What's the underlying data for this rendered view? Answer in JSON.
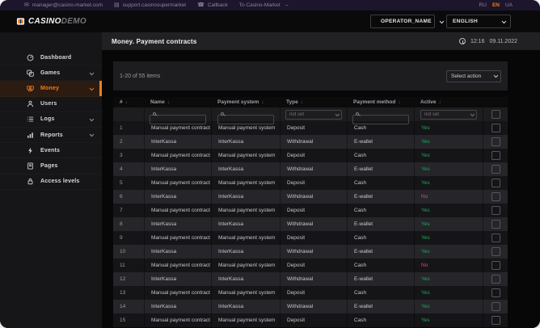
{
  "topbar": {
    "links": [
      {
        "id": "email",
        "icon": "envelope-icon",
        "label": "manager@casino-market.com"
      },
      {
        "id": "support",
        "icon": "chat-icon",
        "label": "support.casinosupermarket"
      },
      {
        "id": "callback",
        "icon": "phone-icon",
        "label": "Callback"
      },
      {
        "id": "to-casino-market",
        "icon": "arrow-right-icon",
        "label": "To Casino-Market",
        "icon_after": true
      }
    ],
    "languages": [
      {
        "code": "RU",
        "active": false
      },
      {
        "code": "EN",
        "active": true
      },
      {
        "code": "UA",
        "active": false
      }
    ]
  },
  "appbar": {
    "logo_primary": "CASINO",
    "logo_secondary": "DEMO",
    "operator_label": "OPERATOR_NAME",
    "language_label": "ENGLISH"
  },
  "sidebar": {
    "items": [
      {
        "id": "dashboard",
        "label": "Dashboard",
        "icon": "dashboard-icon",
        "expandable": false,
        "active": false
      },
      {
        "id": "games",
        "label": "Games",
        "icon": "games-icon",
        "expandable": true,
        "active": false
      },
      {
        "id": "money",
        "label": "Money",
        "icon": "money-icon",
        "expandable": true,
        "active": true
      },
      {
        "id": "users",
        "label": "Users",
        "icon": "users-icon",
        "expandable": false,
        "active": false
      },
      {
        "id": "logs",
        "label": "Logs",
        "icon": "logs-icon",
        "expandable": true,
        "active": false
      },
      {
        "id": "reports",
        "label": "Reports",
        "icon": "reports-icon",
        "expandable": true,
        "active": false
      },
      {
        "id": "events",
        "label": "Events",
        "icon": "events-icon",
        "expandable": false,
        "active": false
      },
      {
        "id": "pages",
        "label": "Pages",
        "icon": "pages-icon",
        "expandable": false,
        "active": false
      },
      {
        "id": "access-levels",
        "label": "Access levels",
        "icon": "lock-icon",
        "expandable": false,
        "active": false
      }
    ]
  },
  "page_header": {
    "title": "Money. Payment contracts",
    "time": "12:16",
    "date": "09.11.2022"
  },
  "toolbar": {
    "items_count": "1-20 of 55 items",
    "action_label": "Select action"
  },
  "table": {
    "columns": [
      {
        "key": "num",
        "label": "#",
        "sortable": true
      },
      {
        "key": "name",
        "label": "Name",
        "sortable": true
      },
      {
        "key": "payment_system",
        "label": "Payment system",
        "sortable": true
      },
      {
        "key": "type",
        "label": "Type",
        "sortable": true
      },
      {
        "key": "payment_method",
        "label": "Payment method",
        "sortable": true
      },
      {
        "key": "active",
        "label": "Active",
        "sortable": true
      }
    ],
    "filters": {
      "not_set": "not set"
    },
    "rows": [
      {
        "num": "1",
        "name": "Manual payment contract",
        "payment_system": "Manual payment system",
        "type": "Deposit",
        "payment_method": "Cash",
        "active": "Yes"
      },
      {
        "num": "2",
        "name": "InterKassa",
        "payment_system": "InterKassa",
        "type": "Withdrawal",
        "payment_method": "E-wallet",
        "active": "Yes"
      },
      {
        "num": "3",
        "name": "Manual payment contract",
        "payment_system": "Manual payment system",
        "type": "Deposit",
        "payment_method": "Cash",
        "active": "Yes"
      },
      {
        "num": "4",
        "name": "InterKassa",
        "payment_system": "InterKassa",
        "type": "Withdrawal",
        "payment_method": "E-wallet",
        "active": "Yes"
      },
      {
        "num": "5",
        "name": "Manual payment contract",
        "payment_system": "Manual payment system",
        "type": "Deposit",
        "payment_method": "Cash",
        "active": "Yes"
      },
      {
        "num": "6",
        "name": "InterKassa",
        "payment_system": "InterKassa",
        "type": "Withdrawal",
        "payment_method": "E-wallet",
        "active": "No"
      },
      {
        "num": "7",
        "name": "Manual payment contract",
        "payment_system": "Manual payment system",
        "type": "Deposit",
        "payment_method": "Cash",
        "active": "Yes"
      },
      {
        "num": "8",
        "name": "InterKassa",
        "payment_system": "InterKassa",
        "type": "Withdrawal",
        "payment_method": "E-wallet",
        "active": "Yes"
      },
      {
        "num": "9",
        "name": "Manual payment contract",
        "payment_system": "Manual payment system",
        "type": "Deposit",
        "payment_method": "Cash",
        "active": "Yes"
      },
      {
        "num": "10",
        "name": "InterKassa",
        "payment_system": "InterKassa",
        "type": "Withdrawal",
        "payment_method": "E-wallet",
        "active": "Yes"
      },
      {
        "num": "11",
        "name": "Manual payment contract",
        "payment_system": "Manual payment system",
        "type": "Deposit",
        "payment_method": "Cash",
        "active": "No"
      },
      {
        "num": "12",
        "name": "InterKassa",
        "payment_system": "InterKassa",
        "type": "Withdrawal",
        "payment_method": "E-wallet",
        "active": "Yes"
      },
      {
        "num": "13",
        "name": "Manual payment contract",
        "payment_system": "Manual payment system",
        "type": "Deposit",
        "payment_method": "Cash",
        "active": "Yes"
      },
      {
        "num": "14",
        "name": "InterKassa",
        "payment_system": "InterKassa",
        "type": "Withdrawal",
        "payment_method": "E-wallet",
        "active": "Yes"
      },
      {
        "num": "15",
        "name": "Manual payment contract",
        "payment_system": "Manual payment system",
        "type": "Deposit",
        "payment_method": "Cash",
        "active": "Yes"
      }
    ]
  },
  "colors": {
    "accent_orange": "#ee7d1e",
    "yes_green": "#26a55c",
    "no_red": "#e14b66",
    "topbar_purple": "#1d152b"
  }
}
